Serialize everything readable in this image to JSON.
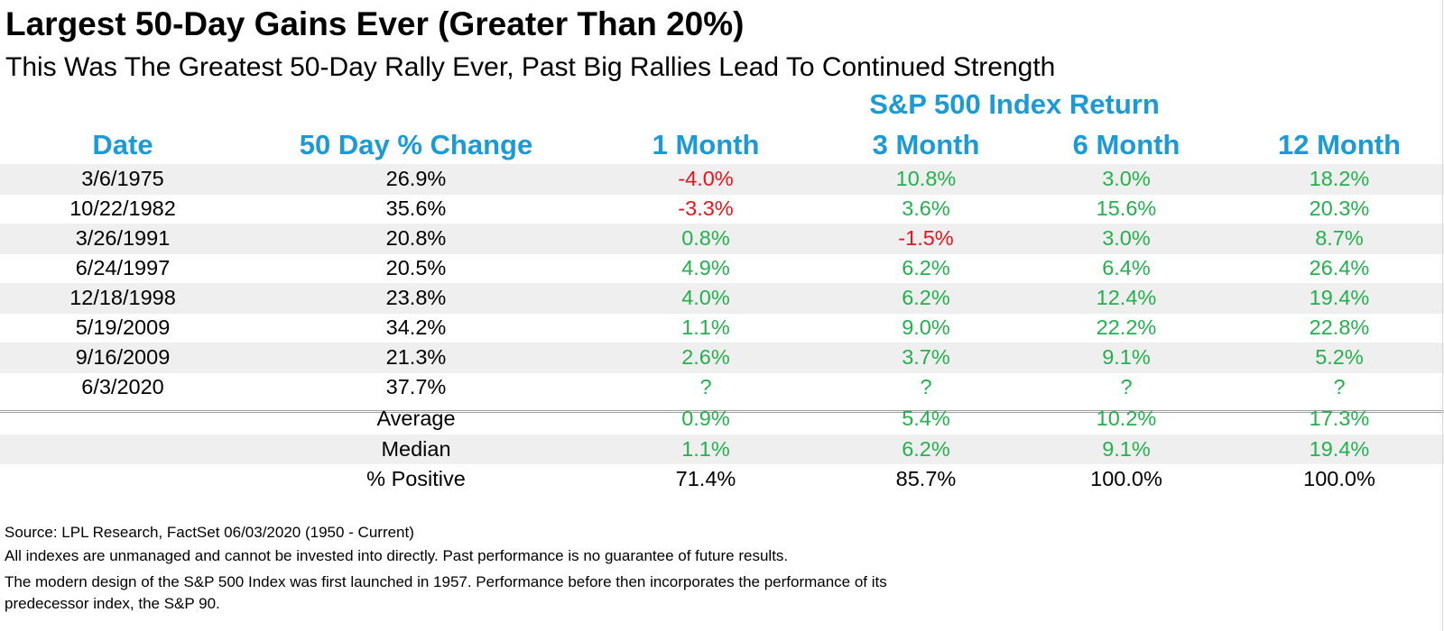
{
  "title": "Largest 50-Day Gains Ever (Greater Than 20%)",
  "subtitle": "This Was The Greatest 50-Day Rally Ever, Past Big Rallies Lead To Continued Strength",
  "group_header": "S&P 500 Index Return",
  "columns": [
    "Date",
    "50 Day % Change",
    "1 Month",
    "3 Month",
    "6 Month",
    "12 Month"
  ],
  "colors": {
    "header_blue": "#1a9ad6",
    "positive_green": "#22b14c",
    "negative_red": "#e8141c",
    "row_shade": "#efefef"
  },
  "rows": [
    [
      "3/6/1975",
      "26.9%",
      "-4.0%",
      "10.8%",
      "3.0%",
      "18.2%"
    ],
    [
      "10/22/1982",
      "35.6%",
      "-3.3%",
      "3.6%",
      "15.6%",
      "20.3%"
    ],
    [
      "3/26/1991",
      "20.8%",
      "0.8%",
      "-1.5%",
      "3.0%",
      "8.7%"
    ],
    [
      "6/24/1997",
      "20.5%",
      "4.9%",
      "6.2%",
      "6.4%",
      "26.4%"
    ],
    [
      "12/18/1998",
      "23.8%",
      "4.0%",
      "6.2%",
      "12.4%",
      "19.4%"
    ],
    [
      "5/19/2009",
      "34.2%",
      "1.1%",
      "9.0%",
      "22.2%",
      "22.8%"
    ],
    [
      "9/16/2009",
      "21.3%",
      "2.6%",
      "3.7%",
      "9.1%",
      "5.2%"
    ],
    [
      "6/3/2020",
      "37.7%",
      "?",
      "?",
      "?",
      "?"
    ]
  ],
  "summary": [
    [
      "",
      "Average",
      "0.9%",
      "5.4%",
      "10.2%",
      "17.3%"
    ],
    [
      "",
      "Median",
      "1.1%",
      "6.2%",
      "9.1%",
      "19.4%"
    ],
    [
      "",
      "% Positive",
      "71.4%",
      "85.7%",
      "100.0%",
      "100.0%"
    ]
  ],
  "footnotes": {
    "source": "Source: LPL Research, FactSet 06/03/2020 (1950 - Current)",
    "disclaimer": "All indexes are unmanaged and cannot be invested into directly. Past performance is no guarantee of future results.",
    "note_line1": "The modern design of the S&P 500 Index was first launched in 1957. Performance before then incorporates the performance of its",
    "note_line2": "predecessor index, the S&P 90."
  }
}
